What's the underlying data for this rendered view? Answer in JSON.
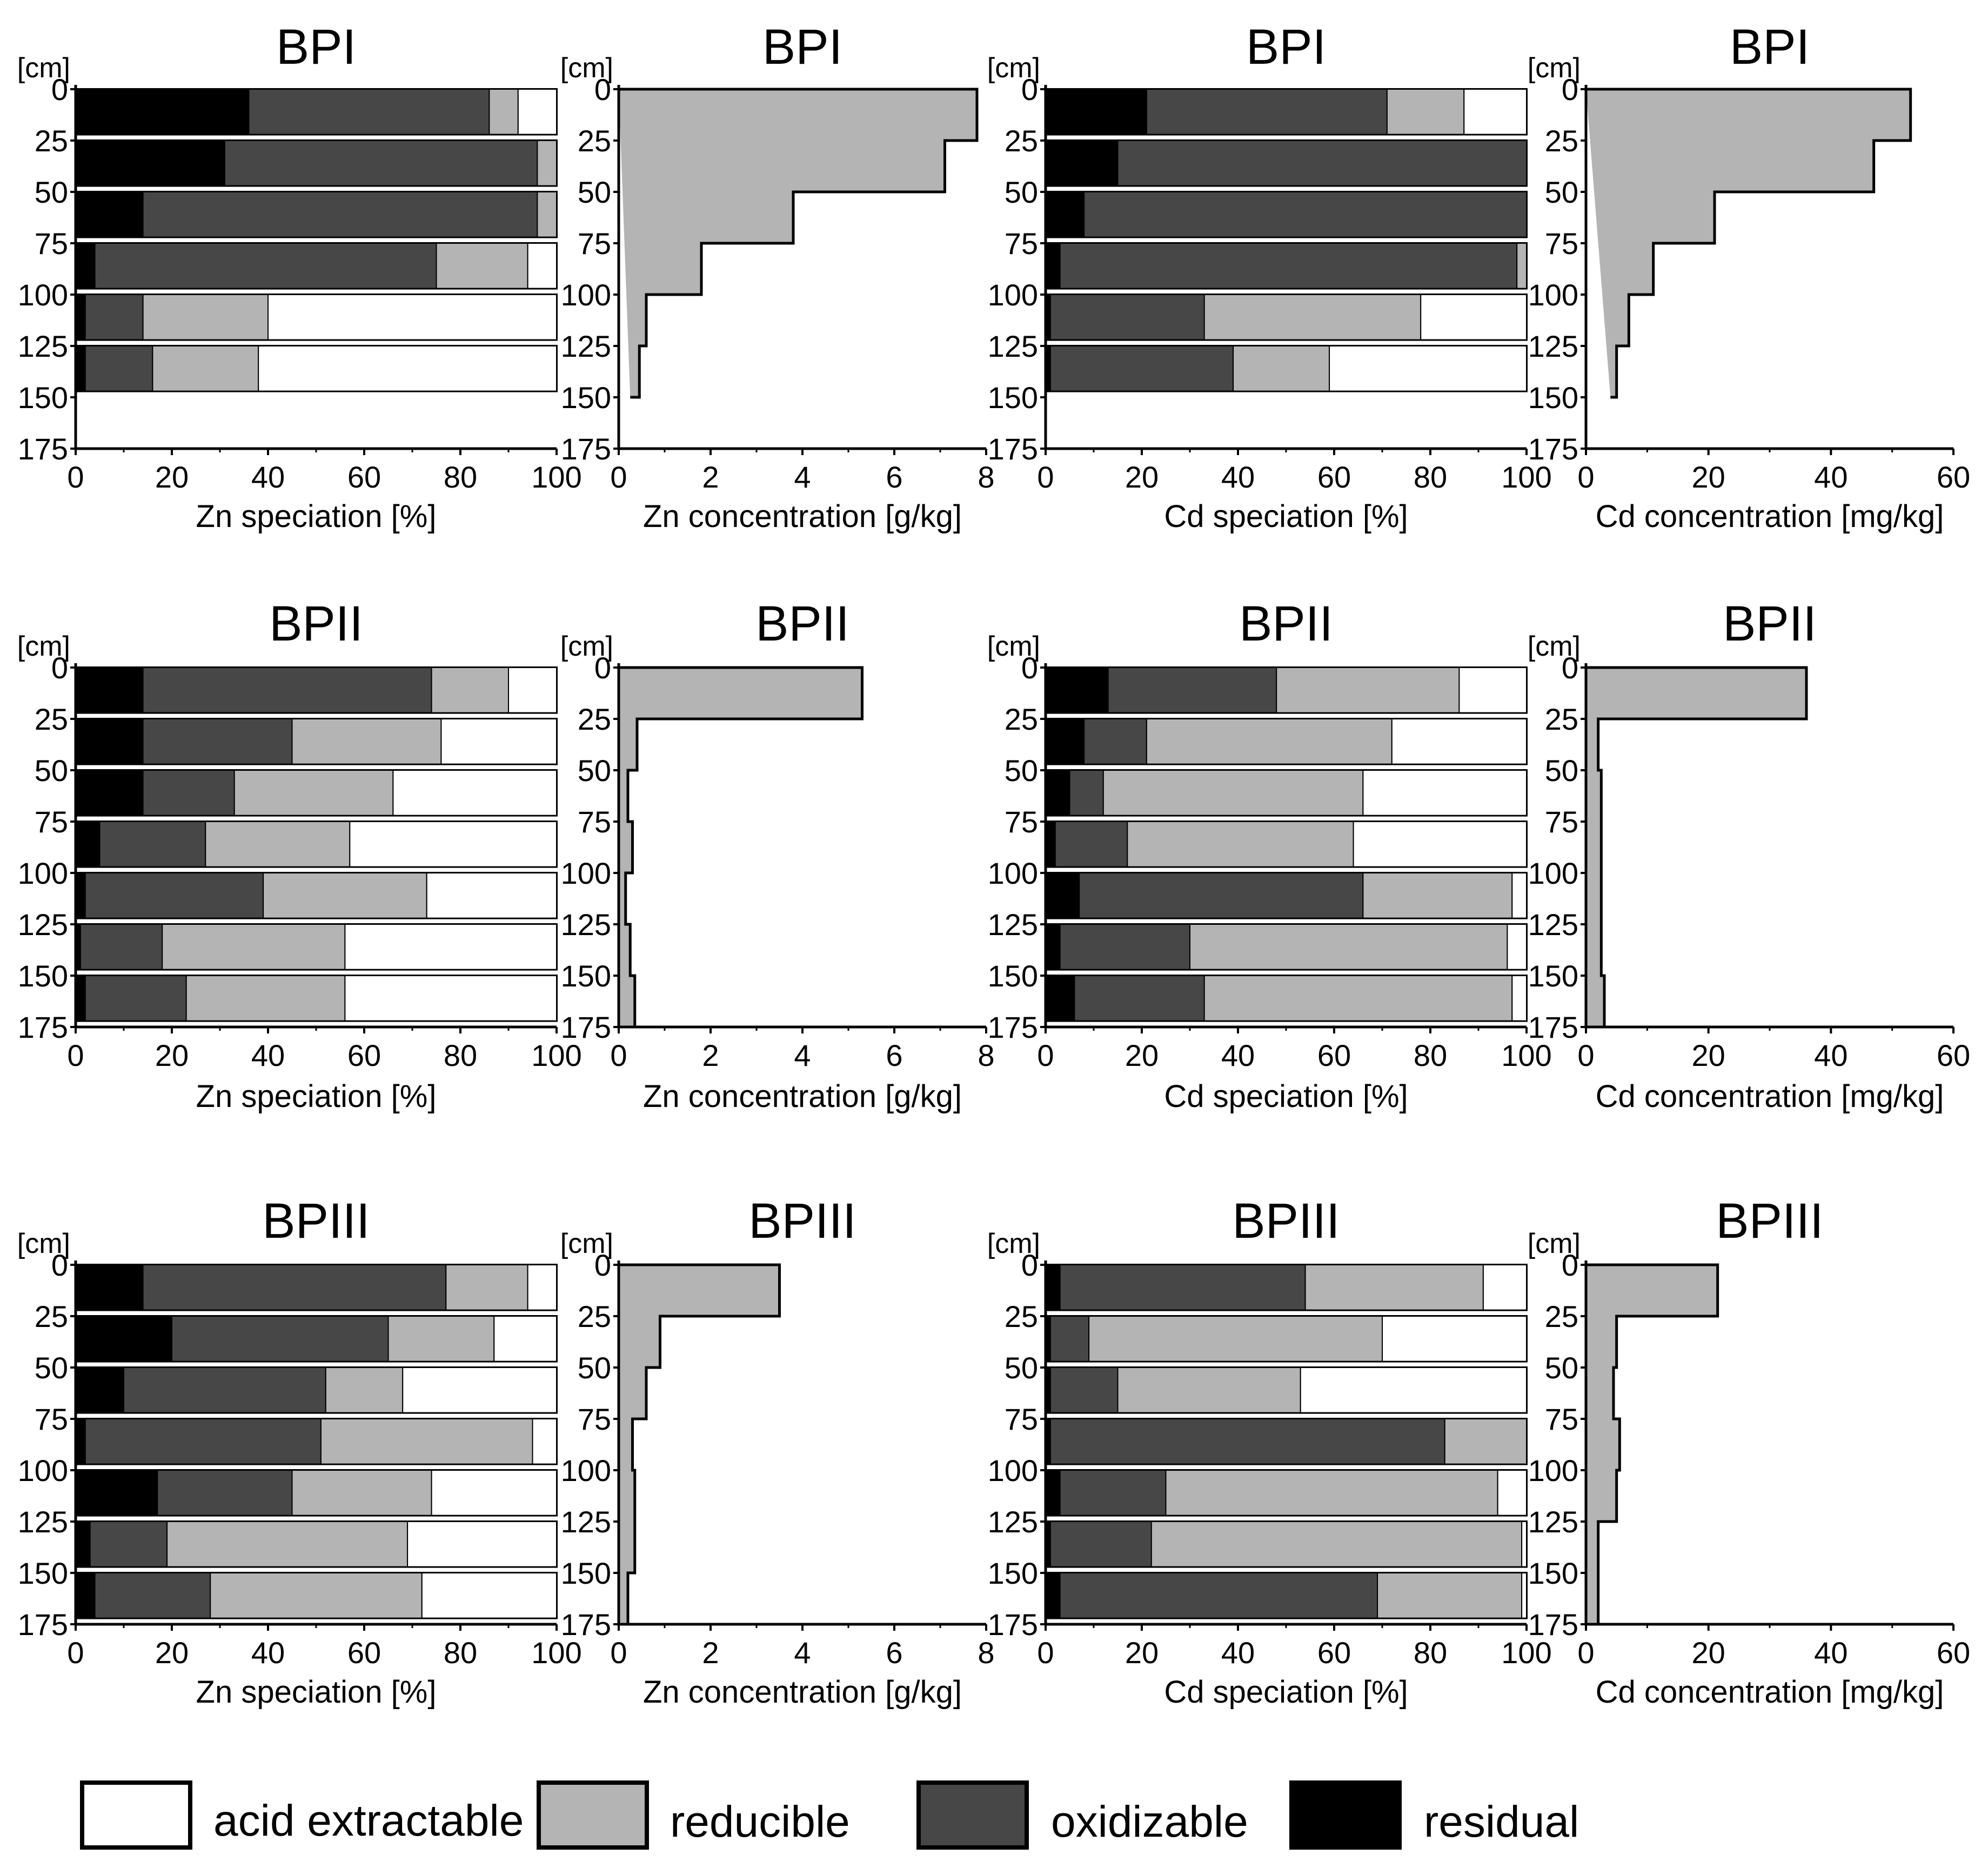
{
  "legend": {
    "items": [
      {
        "label": "acid extractable",
        "color": "#ffffff"
      },
      {
        "label": "reducible",
        "color": "#b4b4b4"
      },
      {
        "label": "oxidizable",
        "color": "#474747"
      },
      {
        "label": "residual",
        "color": "#000000"
      }
    ]
  },
  "chart_data": [
    {
      "type": "bar",
      "orientation": "horizontal-stacked",
      "title": "BPI",
      "profile": "BPI",
      "metal": "Zn",
      "xlabel": "Zn speciation [%]",
      "ylabel": "[cm]",
      "xlim": [
        0,
        100
      ],
      "xticks": [
        0,
        20,
        40,
        60,
        80,
        100
      ],
      "ylim": [
        0,
        175
      ],
      "yticks": [
        0,
        25,
        50,
        75,
        100,
        125,
        150,
        175
      ],
      "series_names": [
        "residual",
        "oxidizable",
        "reducible",
        "acid extractable"
      ],
      "bars": [
        {
          "top": 0,
          "bottom": 22,
          "values": [
            36,
            50,
            6,
            8
          ]
        },
        {
          "top": 25,
          "bottom": 47,
          "values": [
            31,
            65,
            4,
            0
          ]
        },
        {
          "top": 50,
          "bottom": 72,
          "values": [
            14,
            82,
            4,
            0
          ]
        },
        {
          "top": 75,
          "bottom": 97,
          "values": [
            4,
            71,
            19,
            6
          ]
        },
        {
          "top": 100,
          "bottom": 122,
          "values": [
            2,
            12,
            26,
            60
          ]
        },
        {
          "top": 125,
          "bottom": 147,
          "values": [
            2,
            14,
            22,
            62
          ]
        }
      ]
    },
    {
      "type": "area",
      "orientation": "depth-step",
      "title": "BPI",
      "profile": "BPI",
      "metal": "Zn",
      "xlabel": "Zn concentration [g/kg]",
      "ylabel": "[cm]",
      "xlim": [
        0,
        8
      ],
      "xticks": [
        0,
        2,
        4,
        6,
        8
      ],
      "ylim": [
        0,
        175
      ],
      "yticks": [
        0,
        25,
        50,
        75,
        100,
        125,
        150,
        175
      ],
      "depths": [
        0,
        25,
        50,
        75,
        100,
        125,
        150
      ],
      "values": [
        7.8,
        7.1,
        3.8,
        1.8,
        0.6,
        0.45,
        0.25
      ]
    },
    {
      "type": "bar",
      "orientation": "horizontal-stacked",
      "title": "BPI",
      "profile": "BPI",
      "metal": "Cd",
      "xlabel": "Cd speciation [%]",
      "ylabel": "[cm]",
      "xlim": [
        0,
        100
      ],
      "xticks": [
        0,
        20,
        40,
        60,
        80,
        100
      ],
      "ylim": [
        0,
        175
      ],
      "yticks": [
        0,
        25,
        50,
        75,
        100,
        125,
        150,
        175
      ],
      "series_names": [
        "residual",
        "oxidizable",
        "reducible",
        "acid extractable"
      ],
      "bars": [
        {
          "top": 0,
          "bottom": 22,
          "values": [
            21,
            50,
            16,
            13
          ]
        },
        {
          "top": 25,
          "bottom": 47,
          "values": [
            15,
            85,
            0,
            0
          ]
        },
        {
          "top": 50,
          "bottom": 72,
          "values": [
            8,
            92,
            0,
            0
          ]
        },
        {
          "top": 75,
          "bottom": 97,
          "values": [
            3,
            95,
            2,
            0
          ]
        },
        {
          "top": 100,
          "bottom": 122,
          "values": [
            1,
            32,
            45,
            22
          ]
        },
        {
          "top": 125,
          "bottom": 147,
          "values": [
            1,
            38,
            20,
            41
          ]
        }
      ]
    },
    {
      "type": "area",
      "orientation": "depth-step",
      "title": "BPI",
      "profile": "BPI",
      "metal": "Cd",
      "xlabel": "Cd concentration [mg/kg]",
      "ylabel": "[cm]",
      "xlim": [
        0,
        60
      ],
      "xticks": [
        0,
        20,
        40,
        60
      ],
      "ylim": [
        0,
        175
      ],
      "yticks": [
        0,
        25,
        50,
        75,
        100,
        125,
        150,
        175
      ],
      "depths": [
        0,
        25,
        50,
        75,
        100,
        125,
        150
      ],
      "values": [
        53,
        47,
        21,
        11,
        7,
        5,
        4
      ]
    },
    {
      "type": "bar",
      "orientation": "horizontal-stacked",
      "title": "BPII",
      "profile": "BPII",
      "metal": "Zn",
      "xlabel": "Zn speciation [%]",
      "ylabel": "[cm]",
      "xlim": [
        0,
        100
      ],
      "xticks": [
        0,
        20,
        40,
        60,
        80,
        100
      ],
      "ylim": [
        0,
        175
      ],
      "yticks": [
        0,
        25,
        50,
        75,
        100,
        125,
        150,
        175
      ],
      "series_names": [
        "residual",
        "oxidizable",
        "reducible",
        "acid extractable"
      ],
      "bars": [
        {
          "top": 0,
          "bottom": 22,
          "values": [
            14,
            60,
            16,
            10
          ]
        },
        {
          "top": 25,
          "bottom": 47,
          "values": [
            14,
            31,
            31,
            24
          ]
        },
        {
          "top": 50,
          "bottom": 72,
          "values": [
            14,
            19,
            33,
            34
          ]
        },
        {
          "top": 75,
          "bottom": 97,
          "values": [
            5,
            22,
            30,
            43
          ]
        },
        {
          "top": 100,
          "bottom": 122,
          "values": [
            2,
            37,
            34,
            27
          ]
        },
        {
          "top": 125,
          "bottom": 147,
          "values": [
            1,
            17,
            38,
            44
          ]
        },
        {
          "top": 150,
          "bottom": 172,
          "values": [
            2,
            21,
            33,
            44
          ]
        }
      ]
    },
    {
      "type": "area",
      "orientation": "depth-step",
      "title": "BPII",
      "profile": "BPII",
      "metal": "Zn",
      "xlabel": "Zn concentration [g/kg]",
      "ylabel": "[cm]",
      "xlim": [
        0,
        8
      ],
      "xticks": [
        0,
        2,
        4,
        6,
        8
      ],
      "ylim": [
        0,
        175
      ],
      "yticks": [
        0,
        25,
        50,
        75,
        100,
        125,
        150,
        175
      ],
      "depths": [
        0,
        25,
        50,
        75,
        100,
        125,
        150,
        175
      ],
      "values": [
        5.3,
        0.4,
        0.2,
        0.3,
        0.15,
        0.25,
        0.35
      ]
    },
    {
      "type": "bar",
      "orientation": "horizontal-stacked",
      "title": "BPII",
      "profile": "BPII",
      "metal": "Cd",
      "xlabel": "Cd speciation [%]",
      "ylabel": "[cm]",
      "xlim": [
        0,
        100
      ],
      "xticks": [
        0,
        20,
        40,
        60,
        80,
        100
      ],
      "ylim": [
        0,
        175
      ],
      "yticks": [
        0,
        25,
        50,
        75,
        100,
        125,
        150,
        175
      ],
      "series_names": [
        "residual",
        "oxidizable",
        "reducible",
        "acid extractable"
      ],
      "bars": [
        {
          "top": 0,
          "bottom": 22,
          "values": [
            13,
            35,
            38,
            14
          ]
        },
        {
          "top": 25,
          "bottom": 47,
          "values": [
            8,
            13,
            51,
            28
          ]
        },
        {
          "top": 50,
          "bottom": 72,
          "values": [
            5,
            7,
            54,
            34
          ]
        },
        {
          "top": 75,
          "bottom": 97,
          "values": [
            2,
            15,
            47,
            36
          ]
        },
        {
          "top": 100,
          "bottom": 122,
          "values": [
            7,
            59,
            31,
            3
          ]
        },
        {
          "top": 125,
          "bottom": 147,
          "values": [
            3,
            27,
            66,
            4
          ]
        },
        {
          "top": 150,
          "bottom": 172,
          "values": [
            6,
            27,
            64,
            3
          ]
        }
      ]
    },
    {
      "type": "area",
      "orientation": "depth-step",
      "title": "BPII",
      "profile": "BPII",
      "metal": "Cd",
      "xlabel": "Cd concentration [mg/kg]",
      "ylabel": "[cm]",
      "xlim": [
        0,
        60
      ],
      "xticks": [
        0,
        20,
        40,
        60
      ],
      "ylim": [
        0,
        175
      ],
      "yticks": [
        0,
        25,
        50,
        75,
        100,
        125,
        150,
        175
      ],
      "depths": [
        0,
        25,
        50,
        75,
        100,
        125,
        150,
        175
      ],
      "values": [
        36,
        2,
        2.5,
        2.5,
        2.5,
        2.5,
        3
      ]
    },
    {
      "type": "bar",
      "orientation": "horizontal-stacked",
      "title": "BPIII",
      "profile": "BPIII",
      "metal": "Zn",
      "xlabel": "Zn speciation [%]",
      "ylabel": "[cm]",
      "xlim": [
        0,
        100
      ],
      "xticks": [
        0,
        20,
        40,
        60,
        80,
        100
      ],
      "ylim": [
        0,
        175
      ],
      "yticks": [
        0,
        25,
        50,
        75,
        100,
        125,
        150,
        175
      ],
      "series_names": [
        "residual",
        "oxidizable",
        "reducible",
        "acid extractable"
      ],
      "bars": [
        {
          "top": 0,
          "bottom": 22,
          "values": [
            14,
            63,
            17,
            6
          ]
        },
        {
          "top": 25,
          "bottom": 47,
          "values": [
            20,
            45,
            22,
            13
          ]
        },
        {
          "top": 50,
          "bottom": 72,
          "values": [
            10,
            42,
            16,
            32
          ]
        },
        {
          "top": 75,
          "bottom": 97,
          "values": [
            2,
            49,
            44,
            5
          ]
        },
        {
          "top": 100,
          "bottom": 122,
          "values": [
            17,
            28,
            29,
            26
          ]
        },
        {
          "top": 125,
          "bottom": 147,
          "values": [
            3,
            16,
            50,
            31
          ]
        },
        {
          "top": 150,
          "bottom": 172,
          "values": [
            4,
            24,
            44,
            28
          ]
        }
      ]
    },
    {
      "type": "area",
      "orientation": "depth-step",
      "title": "BPIII",
      "profile": "BPIII",
      "metal": "Zn",
      "xlabel": "Zn concentration [g/kg]",
      "ylabel": "[cm]",
      "xlim": [
        0,
        8
      ],
      "xticks": [
        0,
        2,
        4,
        6,
        8
      ],
      "ylim": [
        0,
        175
      ],
      "yticks": [
        0,
        25,
        50,
        75,
        100,
        125,
        150,
        175
      ],
      "depths": [
        0,
        25,
        50,
        75,
        100,
        125,
        150,
        175
      ],
      "values": [
        3.5,
        0.9,
        0.6,
        0.3,
        0.35,
        0.35,
        0.2
      ]
    },
    {
      "type": "bar",
      "orientation": "horizontal-stacked",
      "title": "BPIII",
      "profile": "BPIII",
      "metal": "Cd",
      "xlabel": "Cd speciation [%]",
      "ylabel": "[cm]",
      "xlim": [
        0,
        100
      ],
      "xticks": [
        0,
        20,
        40,
        60,
        80,
        100
      ],
      "ylim": [
        0,
        175
      ],
      "yticks": [
        0,
        25,
        50,
        75,
        100,
        125,
        150,
        175
      ],
      "series_names": [
        "residual",
        "oxidizable",
        "reducible",
        "acid extractable"
      ],
      "bars": [
        {
          "top": 0,
          "bottom": 22,
          "values": [
            3,
            51,
            37,
            9
          ]
        },
        {
          "top": 25,
          "bottom": 47,
          "values": [
            1,
            8,
            61,
            30
          ]
        },
        {
          "top": 50,
          "bottom": 72,
          "values": [
            1,
            14,
            38,
            47
          ]
        },
        {
          "top": 75,
          "bottom": 97,
          "values": [
            1,
            82,
            17,
            0
          ]
        },
        {
          "top": 100,
          "bottom": 122,
          "values": [
            3,
            22,
            69,
            6
          ]
        },
        {
          "top": 125,
          "bottom": 147,
          "values": [
            1,
            21,
            77,
            1
          ]
        },
        {
          "top": 150,
          "bottom": 172,
          "values": [
            3,
            66,
            30,
            1
          ]
        }
      ]
    },
    {
      "type": "area",
      "orientation": "depth-step",
      "title": "BPIII",
      "profile": "BPIII",
      "metal": "Cd",
      "xlabel": "Cd concentration [mg/kg]",
      "ylabel": "[cm]",
      "xlim": [
        0,
        60
      ],
      "xticks": [
        0,
        20,
        40,
        60
      ],
      "ylim": [
        0,
        175
      ],
      "yticks": [
        0,
        25,
        50,
        75,
        100,
        125,
        150,
        175
      ],
      "depths": [
        0,
        25,
        50,
        75,
        100,
        125,
        150,
        175
      ],
      "values": [
        21.5,
        5,
        4.5,
        5.5,
        5,
        2,
        2
      ]
    }
  ]
}
